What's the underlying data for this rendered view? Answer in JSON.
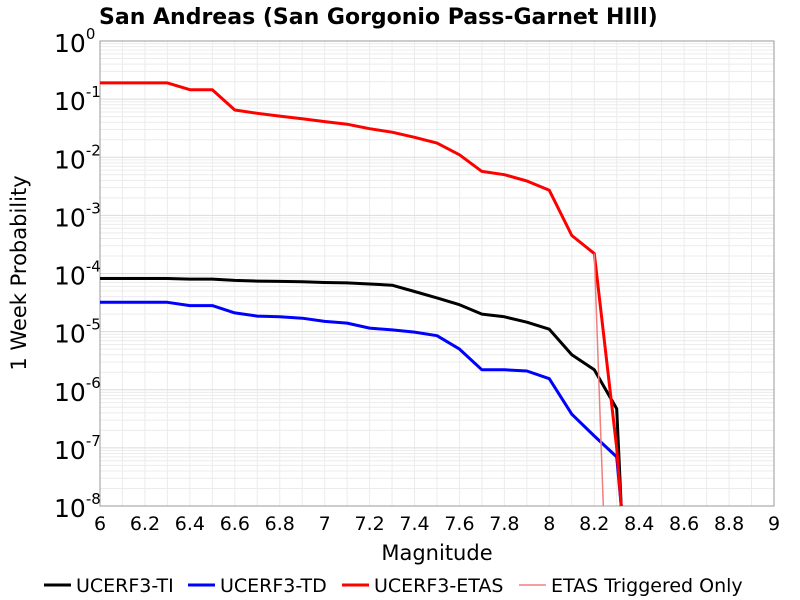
{
  "chart_data": {
    "type": "line",
    "title": "San Andreas (San Gorgonio Pass-Garnet HIll)",
    "xlabel": "Magnitude",
    "ylabel": "1 Week Probability",
    "xlim": [
      6,
      9
    ],
    "ylim": [
      1e-08,
      1
    ],
    "y_scale": "log",
    "grid": true,
    "legend_position": "bottom",
    "x_ticks": [
      "6",
      "6.2",
      "6.4",
      "6.6",
      "6.8",
      "7",
      "7.2",
      "7.4",
      "7.6",
      "7.8",
      "8",
      "8.2",
      "8.4",
      "8.6",
      "8.8",
      "9"
    ],
    "y_ticks": [
      {
        "base": "10",
        "exp": "0",
        "value": 1
      },
      {
        "base": "10",
        "exp": "-1",
        "value": 0.1
      },
      {
        "base": "10",
        "exp": "-2",
        "value": 0.01
      },
      {
        "base": "10",
        "exp": "-3",
        "value": 0.001
      },
      {
        "base": "10",
        "exp": "-4",
        "value": 0.0001
      },
      {
        "base": "10",
        "exp": "-5",
        "value": 1e-05
      },
      {
        "base": "10",
        "exp": "-6",
        "value": 1e-06
      },
      {
        "base": "10",
        "exp": "-7",
        "value": 1e-07
      },
      {
        "base": "10",
        "exp": "-8",
        "value": 1e-08
      }
    ],
    "series": [
      {
        "name": "UCERF3-TI",
        "color": "#000000",
        "width": 3,
        "x": [
          6.0,
          6.1,
          6.2,
          6.3,
          6.4,
          6.5,
          6.6,
          6.7,
          6.8,
          6.9,
          7.0,
          7.1,
          7.2,
          7.3,
          7.4,
          7.5,
          7.6,
          7.7,
          7.8,
          7.9,
          8.0,
          8.1,
          8.2,
          8.3,
          8.32
        ],
        "y": [
          8.2e-05,
          8.2e-05,
          8.2e-05,
          8.2e-05,
          8e-05,
          8e-05,
          7.6e-05,
          7.4e-05,
          7.3e-05,
          7.2e-05,
          7e-05,
          6.9e-05,
          6.6e-05,
          6.3e-05,
          4.9e-05,
          3.8e-05,
          2.9e-05,
          2e-05,
          1.8e-05,
          1.45e-05,
          1.1e-05,
          4e-06,
          2.2e-06,
          4.7e-07,
          1e-08
        ]
      },
      {
        "name": "UCERF3-TD",
        "color": "#0000ff",
        "width": 3,
        "x": [
          6.0,
          6.1,
          6.2,
          6.3,
          6.4,
          6.5,
          6.6,
          6.7,
          6.8,
          6.9,
          7.0,
          7.1,
          7.2,
          7.3,
          7.4,
          7.5,
          7.6,
          7.7,
          7.8,
          7.9,
          8.0,
          8.1,
          8.2,
          8.3,
          8.32
        ],
        "y": [
          3.2e-05,
          3.2e-05,
          3.2e-05,
          3.2e-05,
          2.8e-05,
          2.8e-05,
          2.1e-05,
          1.85e-05,
          1.8e-05,
          1.7e-05,
          1.5e-05,
          1.4e-05,
          1.15e-05,
          1.07e-05,
          9.8e-06,
          8.5e-06,
          5e-06,
          2.2e-06,
          2.2e-06,
          2.1e-06,
          1.55e-06,
          3.8e-07,
          1.6e-07,
          7e-08,
          1e-08
        ]
      },
      {
        "name": "UCERF3-ETAS",
        "color": "#ff0000",
        "width": 3,
        "x": [
          6.0,
          6.1,
          6.2,
          6.3,
          6.4,
          6.5,
          6.6,
          6.7,
          6.8,
          6.9,
          7.0,
          7.1,
          7.2,
          7.3,
          7.4,
          7.5,
          7.6,
          7.7,
          7.8,
          7.9,
          8.0,
          8.1,
          8.2,
          8.3,
          8.32
        ],
        "y": [
          0.19,
          0.19,
          0.19,
          0.19,
          0.145,
          0.145,
          0.065,
          0.057,
          0.051,
          0.046,
          0.041,
          0.037,
          0.031,
          0.027,
          0.022,
          0.0175,
          0.011,
          0.0057,
          0.005,
          0.0039,
          0.0027,
          0.00045,
          0.00022,
          1e-07,
          1e-08
        ]
      },
      {
        "name": "ETAS Triggered Only",
        "color": "#f08080",
        "width": 1.5,
        "x": [
          8.2,
          8.24
        ],
        "y": [
          0.00022,
          1e-08
        ]
      }
    ]
  }
}
